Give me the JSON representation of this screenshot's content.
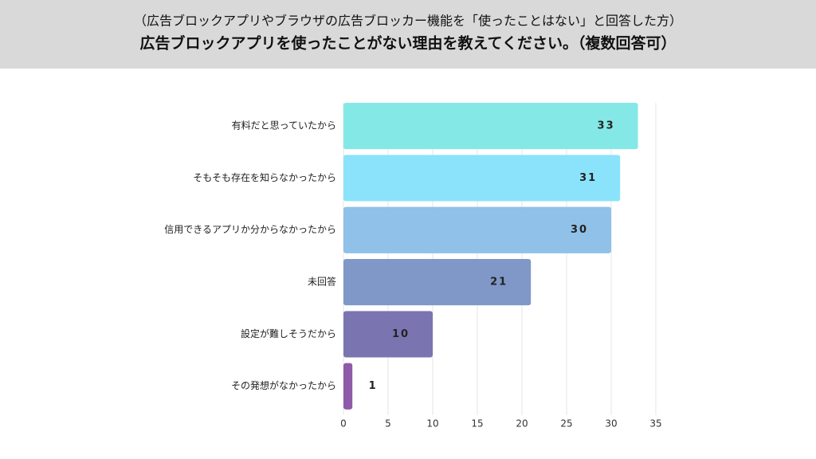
{
  "chart_data": {
    "type": "bar",
    "orientation": "horizontal",
    "subtitle": "（広告ブロックアプリやブラウザの広告ブロッカー機能を「使ったことはない」と回答した方）",
    "title": "広告ブロックアプリを使ったことがない理由を教えてください。（複数回答可）",
    "categories": [
      "有料だと思っていたから",
      "そもそも存在を知らなかったから",
      "信用できるアプリか分からなかったから",
      "未回答",
      "設定が難しそうだから",
      "その発想がなかったから"
    ],
    "values": [
      33,
      31,
      30,
      21,
      10,
      1
    ],
    "colors": [
      "#84e9e6",
      "#8be3fb",
      "#8fc1e9",
      "#7f98c7",
      "#7a75b1",
      "#8f5aa9"
    ],
    "xlim": [
      0,
      35
    ],
    "xticks": [
      0,
      5,
      10,
      15,
      20,
      25,
      30,
      35
    ],
    "grid": true
  }
}
